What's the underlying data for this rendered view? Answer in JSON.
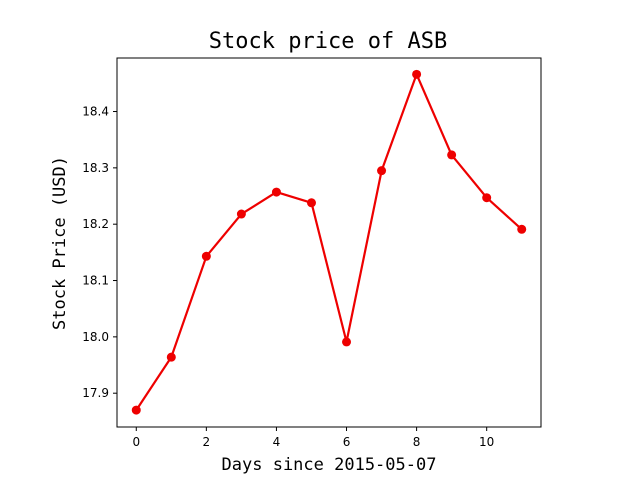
{
  "chart_data": {
    "type": "line",
    "title": "Stock price of ASB",
    "xlabel": "Days since 2015-05-07",
    "ylabel": "Stock Price (USD)",
    "x": [
      0,
      1,
      2,
      3,
      4,
      5,
      6,
      7,
      8,
      9,
      10,
      11
    ],
    "series": [
      {
        "name": "ASB",
        "color": "#ee0000",
        "values": [
          17.87,
          17.964,
          18.143,
          18.218,
          18.257,
          18.238,
          17.991,
          18.295,
          18.466,
          18.323,
          18.247,
          18.191
        ]
      }
    ],
    "xlim": [
      -0.55,
      11.55
    ],
    "ylim": [
      17.84,
      18.495
    ],
    "xticks": [
      0,
      2,
      4,
      6,
      8,
      10
    ],
    "xtick_labels": [
      "0",
      "2",
      "4",
      "6",
      "8",
      "10"
    ],
    "yticks": [
      17.9,
      18.0,
      18.1,
      18.2,
      18.3,
      18.4
    ],
    "ytick_labels": [
      "17.9",
      "18.0",
      "18.1",
      "18.2",
      "18.3",
      "18.4"
    ],
    "grid": false,
    "legend": false
  }
}
